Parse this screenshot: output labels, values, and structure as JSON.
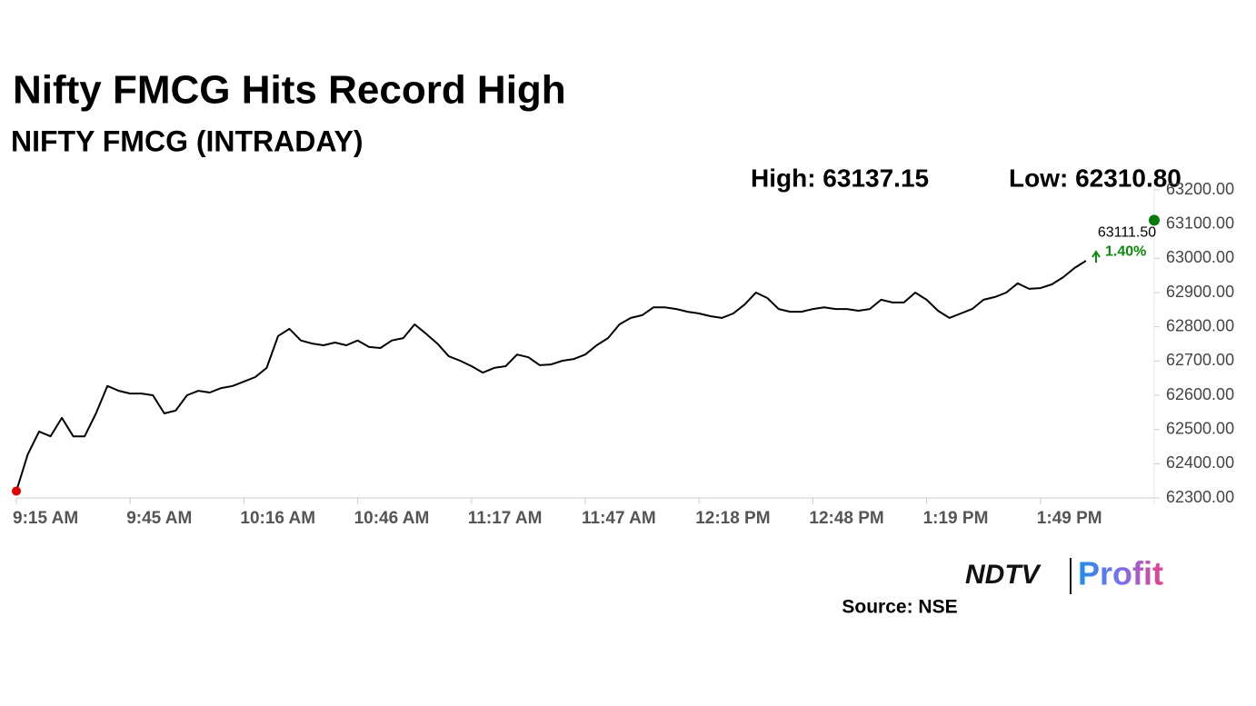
{
  "chart_data": {
    "type": "line",
    "title": "Nifty FMCG Hits Record High",
    "subtitle": "NIFTY FMCG (INTRADAY)",
    "high_label": "High: 63137.15",
    "low_label": "Low: 62310.80",
    "source": "Source: NSE",
    "logo": {
      "brand": "NDTV",
      "product": "Profit"
    },
    "categories": [
      "9:15 AM",
      null,
      null,
      null,
      null,
      null,
      null,
      null,
      null,
      null,
      "9:45 AM",
      null,
      null,
      null,
      null,
      null,
      null,
      null,
      null,
      null,
      "10:16 AM",
      null,
      null,
      null,
      null,
      null,
      null,
      null,
      null,
      null,
      "10:46 AM",
      null,
      null,
      null,
      null,
      null,
      null,
      null,
      null,
      null,
      "11:17 AM",
      null,
      null,
      null,
      null,
      null,
      null,
      null,
      null,
      null,
      "11:47 AM",
      null,
      null,
      null,
      null,
      null,
      null,
      null,
      null,
      null,
      "12:18 PM",
      null,
      null,
      null,
      null,
      null,
      null,
      null,
      null,
      null,
      "12:48 PM",
      null,
      null,
      null,
      null,
      null,
      null,
      null,
      null,
      null,
      "1:19 PM",
      null,
      null,
      null,
      null,
      null,
      null,
      null,
      null,
      null,
      "1:49 PM",
      null,
      null,
      null,
      null,
      null,
      null,
      null,
      null,
      null,
      null
    ],
    "series": [
      {
        "name": "NIFTY FMCG",
        "color": "#000000",
        "values": [
          62320,
          62427,
          62494,
          62480,
          62534,
          62480,
          62480,
          62547,
          62627,
          62613,
          62605,
          62605,
          62600,
          62547,
          62555,
          62600,
          62613,
          62608,
          62621,
          62627,
          62640,
          62653,
          62680,
          62773,
          62794,
          62760,
          62751,
          62746,
          62754,
          62746,
          62760,
          62741,
          62738,
          62760,
          62767,
          62807,
          62780,
          62751,
          62714,
          62701,
          62685,
          62666,
          62680,
          62685,
          62719,
          62711,
          62688,
          62690,
          62701,
          62706,
          62719,
          62746,
          62767,
          62807,
          62826,
          62834,
          62857,
          62857,
          62852,
          62844,
          62839,
          62831,
          62826,
          62839,
          62865,
          62900,
          62884,
          62852,
          62844,
          62844,
          62852,
          62857,
          62852,
          62852,
          62847,
          62852,
          62879,
          62871,
          62871,
          62900,
          62879,
          62847,
          62826,
          62839,
          62852,
          62879,
          62887,
          62900,
          62927,
          62911,
          62913,
          62924,
          62945,
          62972,
          62993,
          null,
          null,
          null,
          null,
          null,
          null
        ]
      }
    ],
    "start_marker_color": "#e00000",
    "last_point": {
      "value": 63111.5,
      "label": "63111.50",
      "color": "#0a7a0a"
    },
    "change": {
      "value": 1.4,
      "label": "1.40%",
      "color": "#0a8a0a"
    },
    "ylim": [
      62300,
      63200
    ],
    "yticks": [
      {
        "value": 62300,
        "label": "62300.00"
      },
      {
        "value": 62400,
        "label": "62400.00"
      },
      {
        "value": 62500,
        "label": "62500.00"
      },
      {
        "value": 62600,
        "label": "62600.00"
      },
      {
        "value": 62700,
        "label": "62700.00"
      },
      {
        "value": 62800,
        "label": "62800.00"
      },
      {
        "value": 62900,
        "label": "62900.00"
      },
      {
        "value": 63000,
        "label": "63000.00"
      },
      {
        "value": 63100,
        "label": "63100.00"
      },
      {
        "value": 63200,
        "label": "63200.00"
      }
    ],
    "grid": false
  }
}
